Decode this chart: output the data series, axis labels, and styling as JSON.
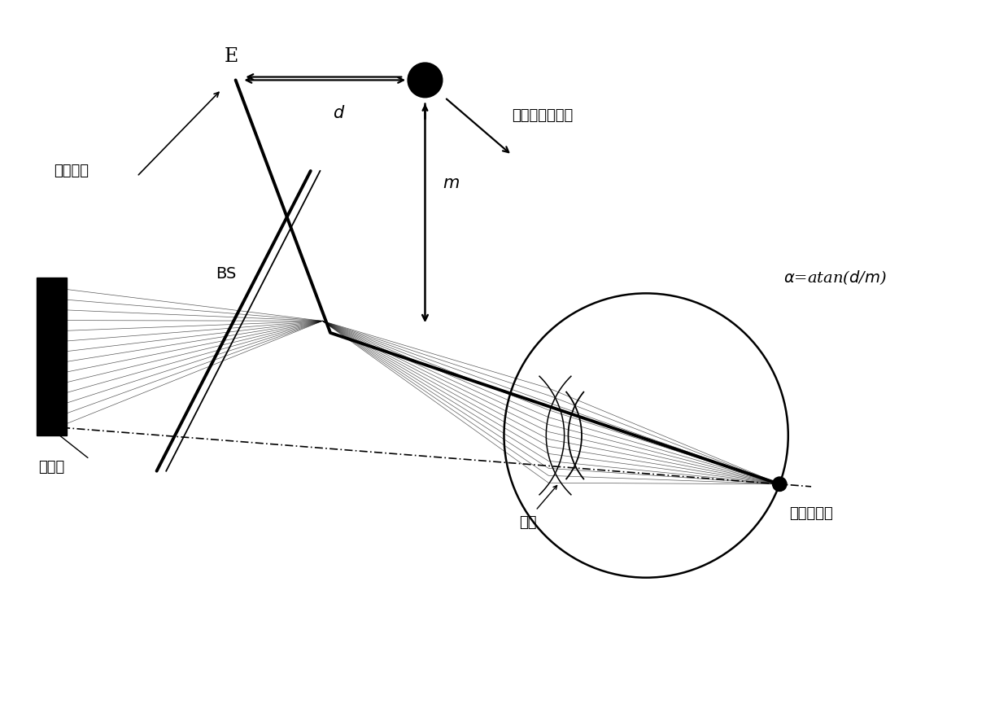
{
  "bg_color": "#ffffff",
  "fig_width": 12.39,
  "fig_height": 8.76,
  "dpi": 100,
  "label_E": "E",
  "label_d": "d",
  "label_m": "m",
  "label_BS": "BS",
  "label_aberrometer": "像差仪",
  "label_fixation": "注视目标",
  "label_align": "与内置视标对齐",
  "label_optical_axis": "光轴",
  "label_fovea": "黄斑中心凹",
  "formula_text": "$\\alpha$=atan($d$/$m$)",
  "xlim": [
    0,
    12
  ],
  "ylim": [
    0,
    9
  ]
}
